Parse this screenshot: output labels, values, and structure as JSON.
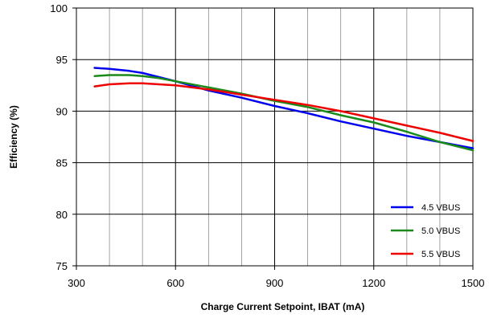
{
  "chart_data": {
    "type": "line",
    "title": "",
    "xlabel": "Charge Current Setpoint, IBAT (mA)",
    "ylabel": "Efficiency (%)",
    "xlim": [
      300,
      1500
    ],
    "ylim": [
      75,
      100
    ],
    "x_major_ticks": [
      300,
      600,
      900,
      1200,
      1500
    ],
    "x_minor_step": 100,
    "y_ticks": [
      75,
      80,
      85,
      90,
      95,
      100
    ],
    "x_tick_labels": [
      "300",
      "600",
      "900",
      "1200",
      "1500"
    ],
    "y_tick_labels": [
      "75",
      "80",
      "85",
      "90",
      "95",
      "100"
    ],
    "grid": true,
    "legend_position": "bottom-right",
    "series": [
      {
        "name": "4.5 VBUS",
        "color": "#0000ee",
        "x": [
          355,
          400,
          460,
          500,
          550,
          600,
          700,
          800,
          900,
          1000,
          1100,
          1200,
          1300,
          1400,
          1500
        ],
        "y": [
          94.2,
          94.1,
          93.9,
          93.7,
          93.3,
          92.9,
          92.0,
          91.3,
          90.5,
          89.8,
          89.0,
          88.3,
          87.6,
          87.0,
          86.4
        ]
      },
      {
        "name": "5.0 VBUS",
        "color": "#1a8a1a",
        "x": [
          355,
          400,
          460,
          500,
          550,
          600,
          700,
          800,
          900,
          1000,
          1100,
          1200,
          1300,
          1400,
          1500
        ],
        "y": [
          93.4,
          93.5,
          93.5,
          93.4,
          93.2,
          92.9,
          92.3,
          91.7,
          91.0,
          90.4,
          89.6,
          88.9,
          88.0,
          87.0,
          86.2
        ]
      },
      {
        "name": "5.5 VBUS",
        "color": "#ee0000",
        "x": [
          355,
          400,
          460,
          500,
          550,
          600,
          700,
          800,
          900,
          1000,
          1100,
          1200,
          1300,
          1400,
          1500
        ],
        "y": [
          92.4,
          92.6,
          92.7,
          92.7,
          92.6,
          92.5,
          92.1,
          91.6,
          91.1,
          90.6,
          90.0,
          89.3,
          88.6,
          87.9,
          87.1
        ]
      }
    ]
  }
}
